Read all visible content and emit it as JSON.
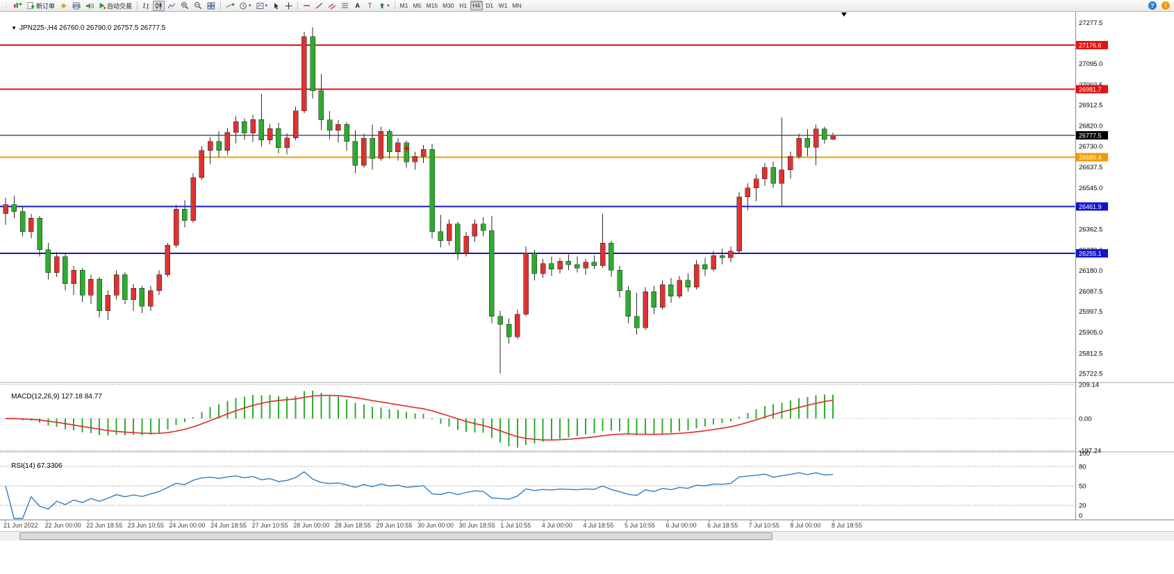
{
  "icons": {
    "one_click": "▼",
    "metaeditor": "◆",
    "caret": "▾",
    "text_tool": "A",
    "label_tool": "T",
    "help": "?",
    "alert": "!",
    "grip": "⋮"
  },
  "toolbar": {
    "new_order_label": "新订单",
    "autotrading_label": "自动交易",
    "timeframes": [
      "M1",
      "M5",
      "M15",
      "M30",
      "H1",
      "H4",
      "D1",
      "W1",
      "MN"
    ],
    "active_timeframe": "H4"
  },
  "chart": {
    "symbol_period": "JPN225-,H4",
    "ohlc_text": "26760.0 26790.0 26757.5 26777.5",
    "colors": {
      "bull": "#e03131",
      "bear": "#2eab2e",
      "wick": "#2a2a2a",
      "axis": "#8a8a8a"
    }
  },
  "chart_data": {
    "type": "candlestick",
    "symbol": "JPN225-",
    "timeframe": "H4",
    "current_bar": {
      "open": 26760.0,
      "high": 26790.0,
      "low": 26757.5,
      "close": 26777.5
    },
    "price_axis": {
      "min": 25695,
      "max": 27300,
      "tick_labels": [
        "27277.5",
        "27095.0",
        "27002.5",
        "26912.5",
        "26820.0",
        "26730.0",
        "26637.5",
        "26545.0",
        "26362.5",
        "26270.0",
        "26180.0",
        "26087.5",
        "25997.5",
        "25905.0",
        "25812.5",
        "25722.5"
      ]
    },
    "time_labels": [
      "21 Jun 2022",
      "22 Jun 00:00",
      "22 Jun 18:55",
      "23 Jun 10:55",
      "24 Jun 00:00",
      "24 Jun 18:55",
      "27 Jun 10:55",
      "28 Jun 00:00",
      "28 Jun 18:55",
      "29 Jun 10:55",
      "30 Jun 00:00",
      "30 Jun 18:55",
      "1 Jul 10:55",
      "4 Jul 00:00",
      "4 Jul 18:55",
      "5 Jul 10:55",
      "6 Jul 00:00",
      "6 Jul 18:55",
      "7 Jul 10:55",
      "8 Jul 00:00",
      "8 Jul 18:55"
    ],
    "horizontal_lines": [
      {
        "price": 27176.6,
        "label": "27176.6",
        "color": "#e01414",
        "width": 2
      },
      {
        "price": 26981.7,
        "label": "26981.7",
        "color": "#e01414",
        "width": 2
      },
      {
        "price": 26777.5,
        "label": "26777.5",
        "color": "#000000",
        "width": 1
      },
      {
        "price": 26680.4,
        "label": "26680.4",
        "color": "#f09a00",
        "width": 2
      },
      {
        "price": 26461.9,
        "label": "26461.9",
        "color": "#1414cc",
        "width": 2
      },
      {
        "price": 26255.1,
        "label": "26255.1",
        "color": "#1414cc",
        "width": 2
      }
    ],
    "order_marker": {
      "index": 47,
      "price": 26720,
      "color": "#d40000"
    },
    "ohlc": [
      [
        26430,
        26500,
        26380,
        26470
      ],
      [
        26470,
        26510,
        26410,
        26440
      ],
      [
        26440,
        26465,
        26330,
        26350
      ],
      [
        26350,
        26430,
        26320,
        26410
      ],
      [
        26410,
        26420,
        26240,
        26270
      ],
      [
        26270,
        26300,
        26140,
        26170
      ],
      [
        26170,
        26260,
        26150,
        26240
      ],
      [
        26240,
        26255,
        26090,
        26120
      ],
      [
        26120,
        26200,
        26070,
        26180
      ],
      [
        26180,
        26190,
        26040,
        26070
      ],
      [
        26070,
        26160,
        26030,
        26140
      ],
      [
        26140,
        26150,
        25970,
        26000
      ],
      [
        26000,
        26090,
        25960,
        26070
      ],
      [
        26070,
        26180,
        26050,
        26160
      ],
      [
        26160,
        26170,
        26030,
        26050
      ],
      [
        26050,
        26120,
        26000,
        26100
      ],
      [
        26100,
        26110,
        25990,
        26020
      ],
      [
        26020,
        26110,
        26000,
        26090
      ],
      [
        26090,
        26180,
        26070,
        26160
      ],
      [
        26160,
        26300,
        26150,
        26290
      ],
      [
        26290,
        26470,
        26280,
        26450
      ],
      [
        26450,
        26490,
        26370,
        26400
      ],
      [
        26400,
        26610,
        26390,
        26590
      ],
      [
        26590,
        26730,
        26580,
        26710
      ],
      [
        26710,
        26770,
        26650,
        26750
      ],
      [
        26750,
        26795,
        26680,
        26710
      ],
      [
        26710,
        26810,
        26690,
        26790
      ],
      [
        26790,
        26862,
        26742,
        26838
      ],
      [
        26838,
        26852,
        26758,
        26788
      ],
      [
        26788,
        26868,
        26748,
        26848
      ],
      [
        26848,
        26960,
        26726,
        26756
      ],
      [
        26756,
        26828,
        26738,
        26808
      ],
      [
        26808,
        26832,
        26698,
        26722
      ],
      [
        26722,
        26786,
        26692,
        26766
      ],
      [
        26766,
        26905,
        26756,
        26885
      ],
      [
        26885,
        27235,
        26875,
        27215
      ],
      [
        27215,
        27255,
        26940,
        26975
      ],
      [
        26975,
        27050,
        26800,
        26845
      ],
      [
        26845,
        26885,
        26760,
        26800
      ],
      [
        26800,
        26845,
        26745,
        26825
      ],
      [
        26825,
        26835,
        26710,
        26750
      ],
      [
        26750,
        26800,
        26610,
        26645
      ],
      [
        26645,
        26785,
        26635,
        26765
      ],
      [
        26765,
        26825,
        26625,
        26675
      ],
      [
        26675,
        26815,
        26665,
        26795
      ],
      [
        26795,
        26805,
        26675,
        26705
      ],
      [
        26705,
        26765,
        26665,
        26745
      ],
      [
        26745,
        26755,
        26635,
        26660
      ],
      [
        26660,
        26705,
        26625,
        26685
      ],
      [
        26685,
        26735,
        26655,
        26715
      ],
      [
        26715,
        26740,
        26320,
        26350
      ],
      [
        26350,
        26425,
        26280,
        26310
      ],
      [
        26310,
        26405,
        26290,
        26385
      ],
      [
        26385,
        26395,
        26225,
        26255
      ],
      [
        26255,
        26350,
        26240,
        26330
      ],
      [
        26330,
        26405,
        26305,
        26385
      ],
      [
        26385,
        26415,
        26330,
        26355
      ],
      [
        26355,
        26420,
        25945,
        25975
      ],
      [
        25975,
        26000,
        25722.5,
        25940
      ],
      [
        25940,
        25965,
        25855,
        25885
      ],
      [
        25885,
        26005,
        25875,
        25985
      ],
      [
        25985,
        26285,
        25975,
        26255
      ],
      [
        26255,
        26270,
        26135,
        26165
      ],
      [
        26165,
        26230,
        26145,
        26210
      ],
      [
        26210,
        26240,
        26155,
        26185
      ],
      [
        26185,
        26235,
        26165,
        26220
      ],
      [
        26220,
        26250,
        26180,
        26205
      ],
      [
        26205,
        26240,
        26170,
        26190
      ],
      [
        26190,
        26230,
        26160,
        26215
      ],
      [
        26215,
        26245,
        26185,
        26200
      ],
      [
        26200,
        26430,
        26190,
        26300
      ],
      [
        26300,
        26310,
        26150,
        26180
      ],
      [
        26180,
        26200,
        26060,
        26090
      ],
      [
        26090,
        26110,
        25945,
        25975
      ],
      [
        25975,
        26080,
        25895,
        25925
      ],
      [
        25925,
        26105,
        25915,
        26085
      ],
      [
        26085,
        26110,
        25985,
        26015
      ],
      [
        26015,
        26135,
        26005,
        26115
      ],
      [
        26115,
        26145,
        26035,
        26065
      ],
      [
        26065,
        26155,
        26055,
        26135
      ],
      [
        26135,
        26165,
        26085,
        26105
      ],
      [
        26105,
        26225,
        26095,
        26205
      ],
      [
        26205,
        26235,
        26155,
        26185
      ],
      [
        26185,
        26265,
        26175,
        26245
      ],
      [
        26245,
        26275,
        26205,
        26235
      ],
      [
        26235,
        26285,
        26215,
        26265
      ],
      [
        26265,
        26525,
        26255,
        26505
      ],
      [
        26505,
        26565,
        26445,
        26545
      ],
      [
        26545,
        26605,
        26485,
        26585
      ],
      [
        26585,
        26655,
        26555,
        26635
      ],
      [
        26635,
        26660,
        26545,
        26565
      ],
      [
        26565,
        26855,
        26460,
        26625
      ],
      [
        26625,
        26705,
        26585,
        26685
      ],
      [
        26685,
        26785,
        26672,
        26765
      ],
      [
        26765,
        26805,
        26685,
        26725
      ],
      [
        26725,
        26825,
        26645,
        26805
      ],
      [
        26805,
        26815,
        26740,
        26760
      ],
      [
        26760,
        26790,
        26757.5,
        26777.5
      ]
    ],
    "indicators": {
      "macd": {
        "label": "MACD(12,26,9)",
        "values": "127.18 84.77",
        "params": [
          12,
          26,
          9
        ],
        "axis_labels": [
          "209.14",
          "0.00",
          "-197.24"
        ],
        "histogram_color": "#2eab2e",
        "signal_color": "#e03131"
      },
      "rsi": {
        "label": "RSI(14)",
        "value": "67.3306",
        "period": 14,
        "axis_labels": [
          "100",
          "80",
          "50",
          "20",
          "0"
        ],
        "levels": [
          80,
          50,
          20
        ],
        "line_color": "#2f7cc2"
      }
    }
  }
}
